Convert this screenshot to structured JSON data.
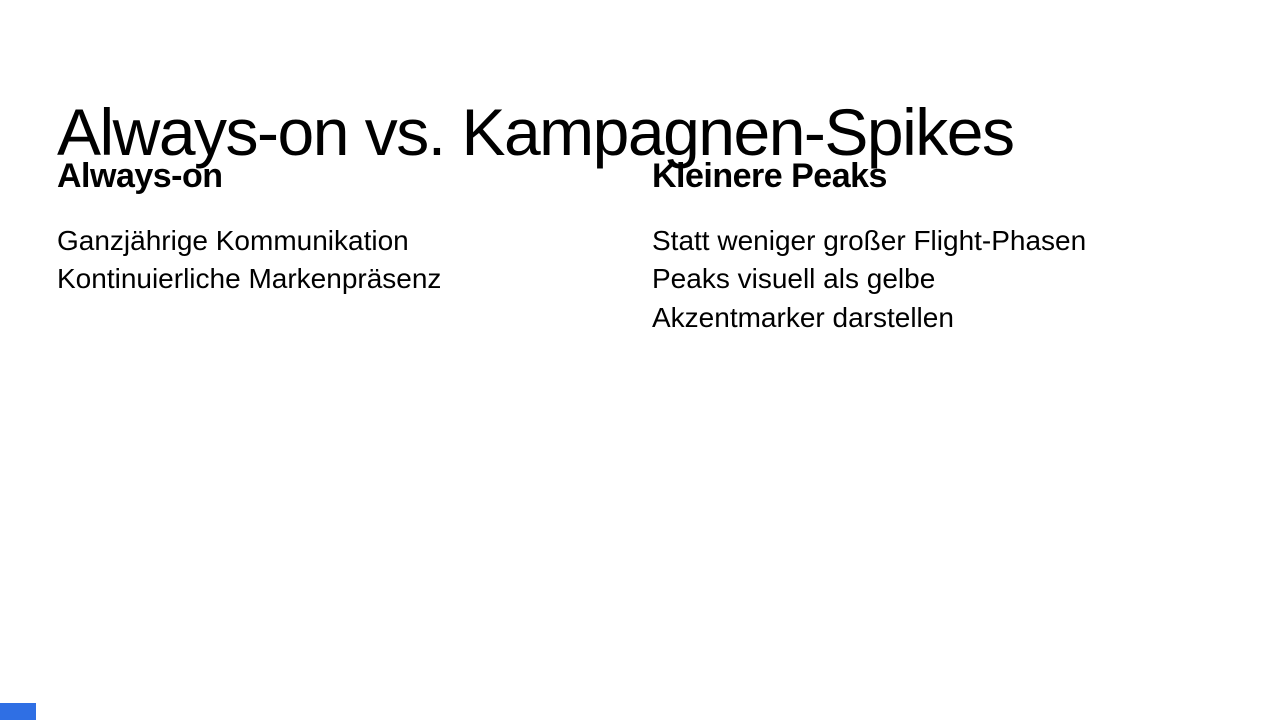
{
  "slide": {
    "title": "Always-on vs. Kampagnen-Spikes",
    "columns": [
      {
        "heading": "Always-on",
        "body": [
          "Ganzjährige Kommunikation",
          "Kontinuierliche Markenpräsenz"
        ]
      },
      {
        "heading": "Kleinere Peaks",
        "body": [
          "Statt weniger großer Flight-Phasen",
          "Peaks visuell als gelbe Akzentmarker darstellen"
        ]
      }
    ],
    "accent_bar_color": "#2f6fe4",
    "background_color": "#ffffff",
    "text_color": "#000000"
  }
}
